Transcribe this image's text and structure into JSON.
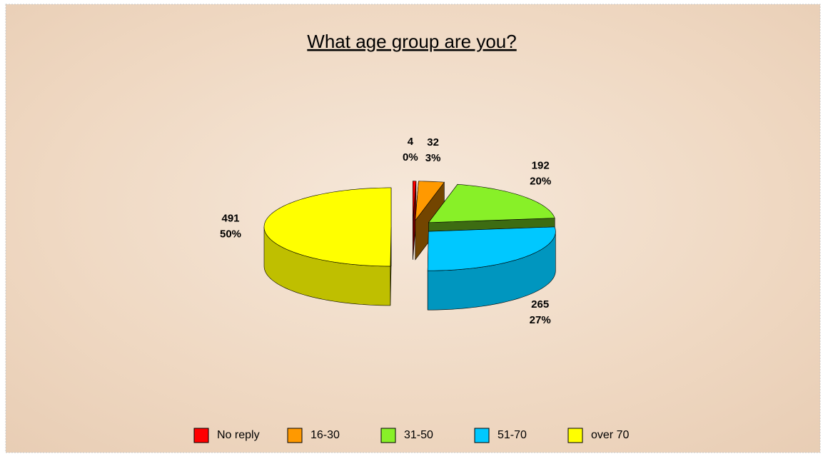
{
  "chart_data": {
    "type": "pie3d",
    "title": "What age group are you?",
    "categories": [
      "No reply",
      "16-30",
      "31-50",
      "51-70",
      "over 70"
    ],
    "values": [
      4,
      32,
      192,
      265,
      491
    ],
    "percent_labels": [
      "0%",
      "3%",
      "20%",
      "27%",
      "50%"
    ],
    "colors": [
      "#ff0000",
      "#ff9900",
      "#88f028",
      "#00c8ff",
      "#ffff00"
    ],
    "legend": "bottom"
  }
}
